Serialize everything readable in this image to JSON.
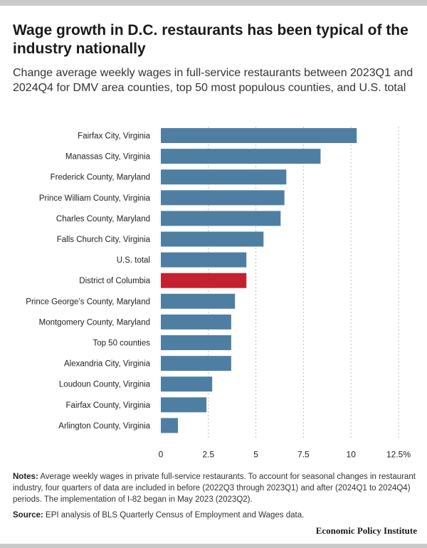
{
  "header": {
    "title": "Wage growth in D.C. restaurants has been typical of the industry nationally",
    "subtitle": "Change average weekly wages in full-service restaurants between 2023Q1 and 2024Q4 for DMV area counties, top 50 most populous counties, and U.S. total"
  },
  "colors": {
    "bar": "#4e7fa3",
    "highlight": "#c4202f",
    "grid": "#bbbbbb"
  },
  "chart_data": {
    "type": "bar",
    "orientation": "horizontal",
    "title": "Wage growth in D.C. restaurants has been typical of the industry nationally",
    "xlabel": "",
    "ylabel": "",
    "xlim": [
      0,
      12.5
    ],
    "grid": true,
    "x_ticks": [
      "0",
      "2.5",
      "5",
      "7.5",
      "10",
      "12.5%"
    ],
    "tick_values": [
      0,
      2.5,
      5,
      7.5,
      10,
      12.5
    ],
    "highlight": "District of Columbia",
    "categories": [
      "Fairfax City, Virginia",
      "Manassas City, Virginia",
      "Frederick County, Maryland",
      "Prince William County, Virginia",
      "Charles County, Maryland",
      "Falls Church City, Virginia",
      "U.S. total",
      "District of Columbia",
      "Prince George’s County, Maryland",
      "Montgomery County, Maryland",
      "Top 50 counties",
      "Alexandria City, Virginia",
      "Loudoun County, Virginia",
      "Fairfax County, Virginia",
      "Arlington County, Virginia"
    ],
    "values": [
      10.3,
      8.4,
      6.6,
      6.5,
      6.3,
      5.4,
      4.5,
      4.5,
      3.9,
      3.7,
      3.7,
      3.7,
      2.7,
      2.4,
      0.9
    ]
  },
  "footer": {
    "notes_label": "Notes:",
    "notes_text": " Average weekly wages in private full-service restaurants. To account for seasonal changes in restaurant industry, four quarters of data are included in before (2022Q3 through 2023Q1) and after (2024Q1 to 2024Q4) periods. The implementation of I-82 began in May 2023 (2023Q2).",
    "source_label": "Source:",
    "source_text": " EPI analysis of BLS Quarterly Census of Employment and Wages data.",
    "brand": "Economic Policy Institute"
  }
}
